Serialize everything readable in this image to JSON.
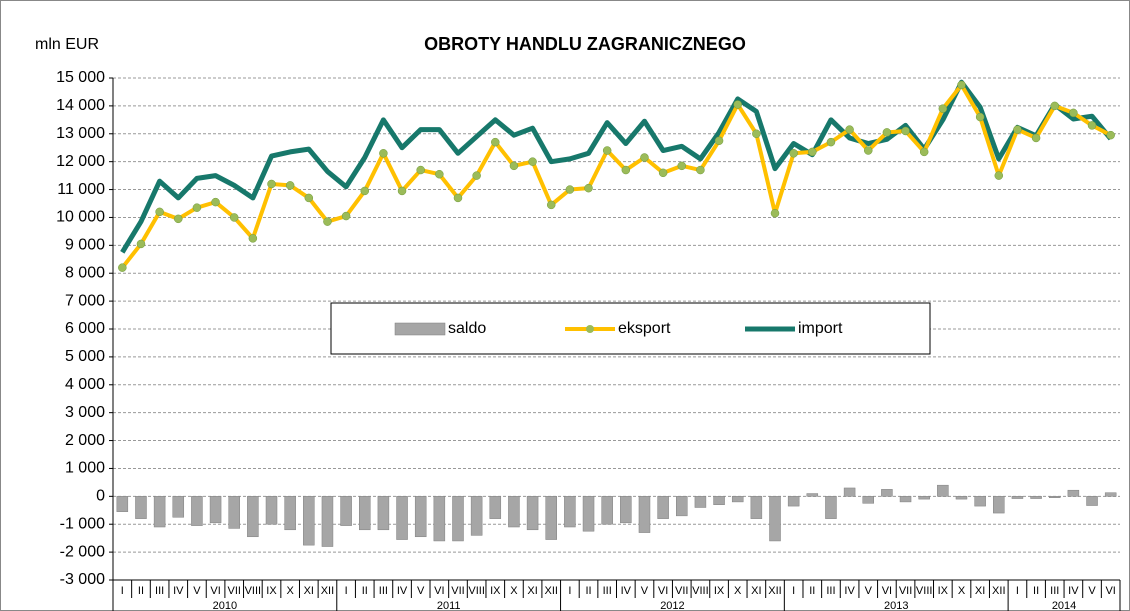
{
  "chart_data": {
    "type": "bar_line",
    "title": "OBROTY HANDLU ZAGRANICZNEGO",
    "y_axis_label": "mln EUR",
    "categories": [
      "I",
      "II",
      "III",
      "IV",
      "V",
      "VI",
      "VII",
      "VIII",
      "IX",
      "X",
      "XI",
      "XII",
      "I",
      "II",
      "III",
      "IV",
      "V",
      "VI",
      "VII",
      "VIII",
      "IX",
      "X",
      "XI",
      "XII",
      "I",
      "II",
      "III",
      "IV",
      "V",
      "VI",
      "VII",
      "VIII",
      "IX",
      "X",
      "XI",
      "XII",
      "I",
      "II",
      "III",
      "IV",
      "V",
      "VI",
      "VII",
      "VIII",
      "IX",
      "X",
      "XI",
      "XII",
      "I",
      "II",
      "III",
      "IV",
      "V",
      "VI"
    ],
    "years": [
      "2010",
      "2011",
      "2012",
      "2013",
      "2014"
    ],
    "ylim": [
      -3000,
      15000
    ],
    "yticks": [
      {
        "value": -3000,
        "label": "-3 000"
      },
      {
        "value": -2000,
        "label": "-2 000"
      },
      {
        "value": -1000,
        "label": "-1 000"
      },
      0,
      {
        "value": 1000,
        "label": "1 000"
      },
      {
        "value": 2000,
        "label": "2 000"
      },
      {
        "value": 3000,
        "label": "3 000"
      },
      {
        "value": 4000,
        "label": "4 000"
      },
      {
        "value": 5000,
        "label": "5 000"
      },
      {
        "value": 6000,
        "label": "6 000"
      },
      {
        "value": 7000,
        "label": "7 000"
      },
      {
        "value": 8000,
        "label": "8 000"
      },
      {
        "value": 9000,
        "label": "9 000"
      },
      {
        "value": 10000,
        "label": "10 000"
      },
      {
        "value": 11000,
        "label": "11 000"
      },
      {
        "value": 12000,
        "label": "12 000"
      },
      {
        "value": 13000,
        "label": "13 000"
      },
      {
        "value": 14000,
        "label": "14 000"
      },
      {
        "value": 15000,
        "label": "15 000"
      }
    ],
    "grid": true,
    "series": [
      {
        "name": "saldo",
        "type": "bar",
        "color": "#a6a6a6",
        "values": [
          -550,
          -800,
          -1100,
          -750,
          -1050,
          -950,
          -1150,
          -1450,
          -1000,
          -1200,
          -1750,
          -1800,
          -1050,
          -1200,
          -1200,
          -1550,
          -1450,
          -1600,
          -1600,
          -1400,
          -800,
          -1100,
          -1200,
          -1550,
          -1100,
          -1250,
          -1000,
          -950,
          -1300,
          -800,
          -700,
          -400,
          -300,
          -200,
          -800,
          -1600,
          -350,
          100,
          -800,
          300,
          -250,
          250,
          -200,
          -100,
          400,
          -100,
          -350,
          -600,
          -80,
          -80,
          -50,
          220,
          -330,
          130
        ]
      },
      {
        "name": "eksport",
        "type": "line",
        "color": "#ffc000",
        "marker_color": "#9bbb59",
        "values": [
          8200,
          9050,
          10200,
          9950,
          10350,
          10550,
          10000,
          9250,
          11200,
          11150,
          10700,
          9850,
          10050,
          10950,
          12300,
          10950,
          11700,
          11550,
          10700,
          11500,
          12700,
          11850,
          12000,
          10450,
          11000,
          11050,
          12400,
          11700,
          12150,
          11600,
          11850,
          11700,
          12750,
          14050,
          13000,
          10150,
          12300,
          12350,
          12700,
          13150,
          12400,
          13050,
          13100,
          12350,
          13900,
          14750,
          13600,
          11500,
          13150,
          12850,
          14000,
          13750,
          13300,
          12950
        ]
      },
      {
        "name": "import",
        "type": "line",
        "color": "#17786b",
        "values": [
          8750,
          9850,
          11300,
          10700,
          11400,
          11500,
          11150,
          10700,
          12200,
          12350,
          12450,
          11650,
          11100,
          12150,
          13500,
          12500,
          13150,
          13150,
          12300,
          12900,
          13500,
          12950,
          13200,
          12000,
          12100,
          12300,
          13400,
          12650,
          13450,
          12400,
          12550,
          12100,
          13050,
          14250,
          13800,
          11750,
          12650,
          12250,
          13500,
          12850,
          12650,
          12800,
          13300,
          12450,
          13500,
          14850,
          13950,
          12100,
          13230,
          12930,
          14050,
          13530,
          13630,
          12820
        ]
      }
    ]
  }
}
